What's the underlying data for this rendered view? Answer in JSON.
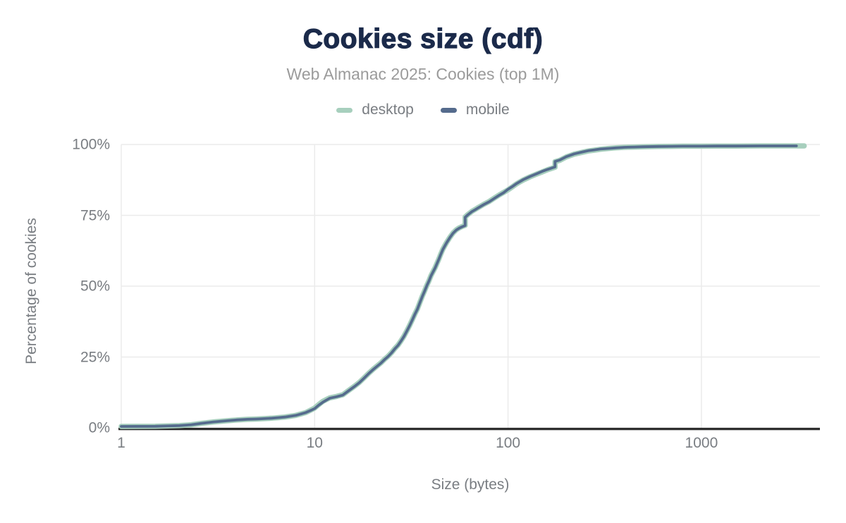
{
  "chart_data": {
    "type": "line",
    "title": "Cookies size (cdf)",
    "subtitle": "Web Almanac 2025: Cookies (top 1M)",
    "xlabel": "Size (bytes)",
    "ylabel": "Percentage of cookies",
    "x_scale": "log",
    "xlim": [
      1,
      4100
    ],
    "ylim": [
      0,
      100
    ],
    "grid": "on",
    "legend_position": "top-center",
    "x_ticks": [
      {
        "value": 1,
        "label": "1"
      },
      {
        "value": 10,
        "label": "10"
      },
      {
        "value": 100,
        "label": "100"
      },
      {
        "value": 1000,
        "label": "1000"
      }
    ],
    "y_ticks": [
      {
        "value": 0,
        "label": "0%"
      },
      {
        "value": 25,
        "label": "25%"
      },
      {
        "value": 50,
        "label": "50%"
      },
      {
        "value": 75,
        "label": "75%"
      },
      {
        "value": 100,
        "label": "100%"
      }
    ],
    "x_grid": [
      1,
      10,
      100,
      1000
    ],
    "y_grid": [
      25,
      50,
      75,
      100
    ],
    "colors": {
      "title": "#1b2a4a",
      "subtitle": "#9b9b9b",
      "text": "#797d82",
      "grid": "#ebebeb",
      "axis_line": "#2d2d2d"
    },
    "series": [
      {
        "name": "desktop",
        "color": "#a7cfbd",
        "x": [
          1,
          1.5,
          2,
          2.3,
          2.6,
          3,
          3.5,
          4,
          4.5,
          5,
          5.5,
          6,
          6.5,
          7,
          7.5,
          8,
          8.5,
          9,
          9.5,
          10,
          10.5,
          11,
          11.5,
          12,
          13,
          14,
          15,
          16,
          17,
          18,
          19,
          20,
          21,
          22,
          23,
          24,
          25,
          26,
          27,
          28,
          29,
          30,
          31,
          32,
          33,
          34,
          35,
          36,
          37,
          38,
          39,
          40,
          42,
          44,
          45,
          46,
          48,
          50,
          52,
          54,
          56,
          58,
          60,
          60,
          62,
          65,
          68,
          70,
          75,
          80,
          85,
          90,
          95,
          100,
          105,
          110,
          115,
          120,
          130,
          140,
          150,
          160,
          170,
          175,
          175,
          185,
          200,
          220,
          240,
          260,
          280,
          300,
          330,
          360,
          400,
          450,
          500,
          600,
          700,
          800,
          1000,
          1200,
          1500,
          2000,
          2500,
          3000,
          3400
        ],
        "y": [
          0.5,
          0.55,
          0.8,
          1.1,
          1.6,
          2.1,
          2.5,
          2.8,
          3.0,
          3.1,
          3.25,
          3.4,
          3.6,
          3.8,
          4.1,
          4.4,
          4.9,
          5.4,
          6.2,
          7.0,
          8.2,
          9.3,
          10.0,
          10.6,
          11.1,
          11.7,
          13.2,
          14.6,
          16.0,
          17.6,
          19.2,
          20.6,
          21.8,
          22.9,
          24.2,
          25.3,
          26.6,
          28.0,
          29.2,
          30.8,
          32.4,
          34.3,
          36.2,
          38.2,
          40.2,
          42.0,
          44.2,
          46.4,
          48.3,
          50.2,
          51.9,
          53.8,
          56.6,
          59.8,
          61.5,
          63.0,
          65.3,
          67.2,
          68.8,
          69.9,
          70.6,
          71.1,
          71.5,
          74.4,
          75.3,
          76.4,
          77.2,
          77.7,
          78.9,
          79.9,
          81.1,
          82.2,
          83.1,
          84.0,
          85.0,
          86.0,
          86.8,
          87.5,
          88.6,
          89.5,
          90.3,
          91.1,
          91.7,
          92.0,
          93.9,
          94.4,
          95.6,
          96.6,
          97.2,
          97.7,
          98.0,
          98.3,
          98.6,
          98.8,
          99.0,
          99.1,
          99.2,
          99.3,
          99.35,
          99.4,
          99.4,
          99.45,
          99.45,
          99.5,
          99.5,
          99.5,
          99.5
        ]
      },
      {
        "name": "mobile",
        "color": "#556b8d",
        "x": [
          1,
          1.5,
          2,
          2.3,
          2.6,
          3,
          3.5,
          4,
          4.5,
          5,
          5.5,
          6,
          6.5,
          7,
          7.5,
          8,
          8.5,
          9,
          9.5,
          10,
          10.5,
          11,
          11.5,
          12,
          13,
          14,
          15,
          16,
          17,
          18,
          19,
          20,
          21,
          22,
          23,
          24,
          25,
          26,
          27,
          28,
          29,
          30,
          31,
          32,
          33,
          34,
          35,
          36,
          37,
          38,
          39,
          40,
          42,
          44,
          45,
          46,
          48,
          50,
          52,
          54,
          56,
          58,
          60,
          60,
          62,
          65,
          68,
          70,
          75,
          80,
          85,
          90,
          95,
          100,
          105,
          110,
          115,
          120,
          130,
          140,
          150,
          160,
          170,
          175,
          175,
          185,
          200,
          220,
          240,
          260,
          280,
          300,
          330,
          360,
          400,
          450,
          500,
          600,
          700,
          800,
          1000,
          1200,
          1500,
          2000,
          2500,
          2800,
          3100
        ],
        "y": [
          0.5,
          0.55,
          0.8,
          1.1,
          1.6,
          2.1,
          2.5,
          2.8,
          3.0,
          3.1,
          3.25,
          3.4,
          3.6,
          3.8,
          4.1,
          4.4,
          4.9,
          5.4,
          6.1,
          6.8,
          8.0,
          9.0,
          9.8,
          10.5,
          11.0,
          11.6,
          13.1,
          14.5,
          15.9,
          17.5,
          19.1,
          20.5,
          21.7,
          22.8,
          24.1,
          25.2,
          26.5,
          27.9,
          29.1,
          30.7,
          32.3,
          34.2,
          36.1,
          38.1,
          40.1,
          41.9,
          44.1,
          46.3,
          48.2,
          50.1,
          51.8,
          53.7,
          56.5,
          59.7,
          61.4,
          62.9,
          65.2,
          67.1,
          68.7,
          69.8,
          70.5,
          71.0,
          71.4,
          74.3,
          75.2,
          76.3,
          77.1,
          77.6,
          78.8,
          79.8,
          81.0,
          82.1,
          83.0,
          84.2,
          85.1,
          86.1,
          86.9,
          87.6,
          88.7,
          89.6,
          90.5,
          91.2,
          91.8,
          92.1,
          94.0,
          94.5,
          95.7,
          96.7,
          97.3,
          97.8,
          98.1,
          98.4,
          98.6,
          98.8,
          99.0,
          99.1,
          99.2,
          99.3,
          99.35,
          99.4,
          99.4,
          99.45,
          99.45,
          99.5,
          99.5,
          99.5,
          99.5
        ]
      }
    ]
  }
}
